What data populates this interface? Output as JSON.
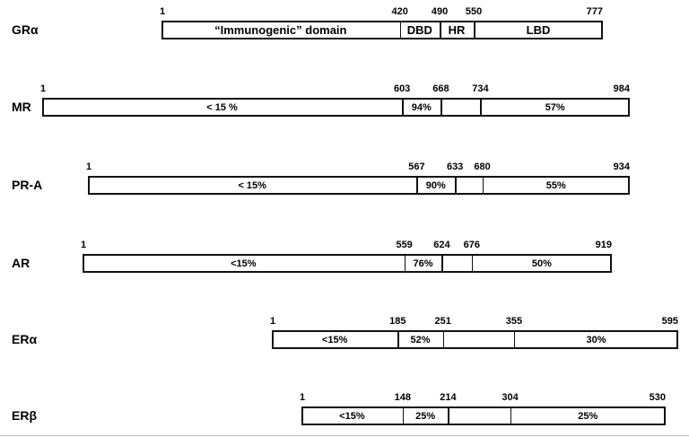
{
  "figure": {
    "background_color": "#ffffff",
    "bar_fill_color": "#ffffff",
    "bar_border_color": "#111111",
    "text_color": "#000000"
  },
  "receptors": [
    {
      "name": "GRα",
      "ticks": [
        "1",
        "420",
        "490",
        "550",
        "777"
      ],
      "boundaries": [
        1,
        420,
        490,
        550,
        777
      ],
      "segments": [
        "“Immunogenic” domain",
        "DBD",
        "HR",
        "LBD"
      ]
    },
    {
      "name": "MR",
      "ticks": [
        "1",
        "603",
        "668",
        "734",
        "984"
      ],
      "boundaries": [
        1,
        603,
        668,
        734,
        984
      ],
      "segments": [
        "< 15 %",
        "94%",
        "",
        "57%"
      ]
    },
    {
      "name": "PR-A",
      "ticks": [
        "1",
        "567",
        "633",
        "680",
        "934"
      ],
      "boundaries": [
        1,
        567,
        633,
        680,
        934
      ],
      "segments": [
        "< 15%",
        "90%",
        "",
        "55%"
      ]
    },
    {
      "name": "AR",
      "ticks": [
        "1",
        "559",
        "624",
        "676",
        "919"
      ],
      "boundaries": [
        1,
        559,
        624,
        676,
        919
      ],
      "segments": [
        "<15%",
        "76%",
        "",
        "50%"
      ]
    },
    {
      "name": "ERα",
      "ticks": [
        "1",
        "185",
        "251",
        "355",
        "595"
      ],
      "boundaries": [
        1,
        185,
        251,
        355,
        595
      ],
      "segments": [
        "<15%",
        "52%",
        "",
        "30%"
      ]
    },
    {
      "name": "ERβ",
      "ticks": [
        "1",
        "148",
        "214",
        "304",
        "530"
      ],
      "boundaries": [
        1,
        148,
        214,
        304,
        530
      ],
      "segments": [
        "<15%",
        "25%",
        "",
        "25%"
      ]
    }
  ]
}
